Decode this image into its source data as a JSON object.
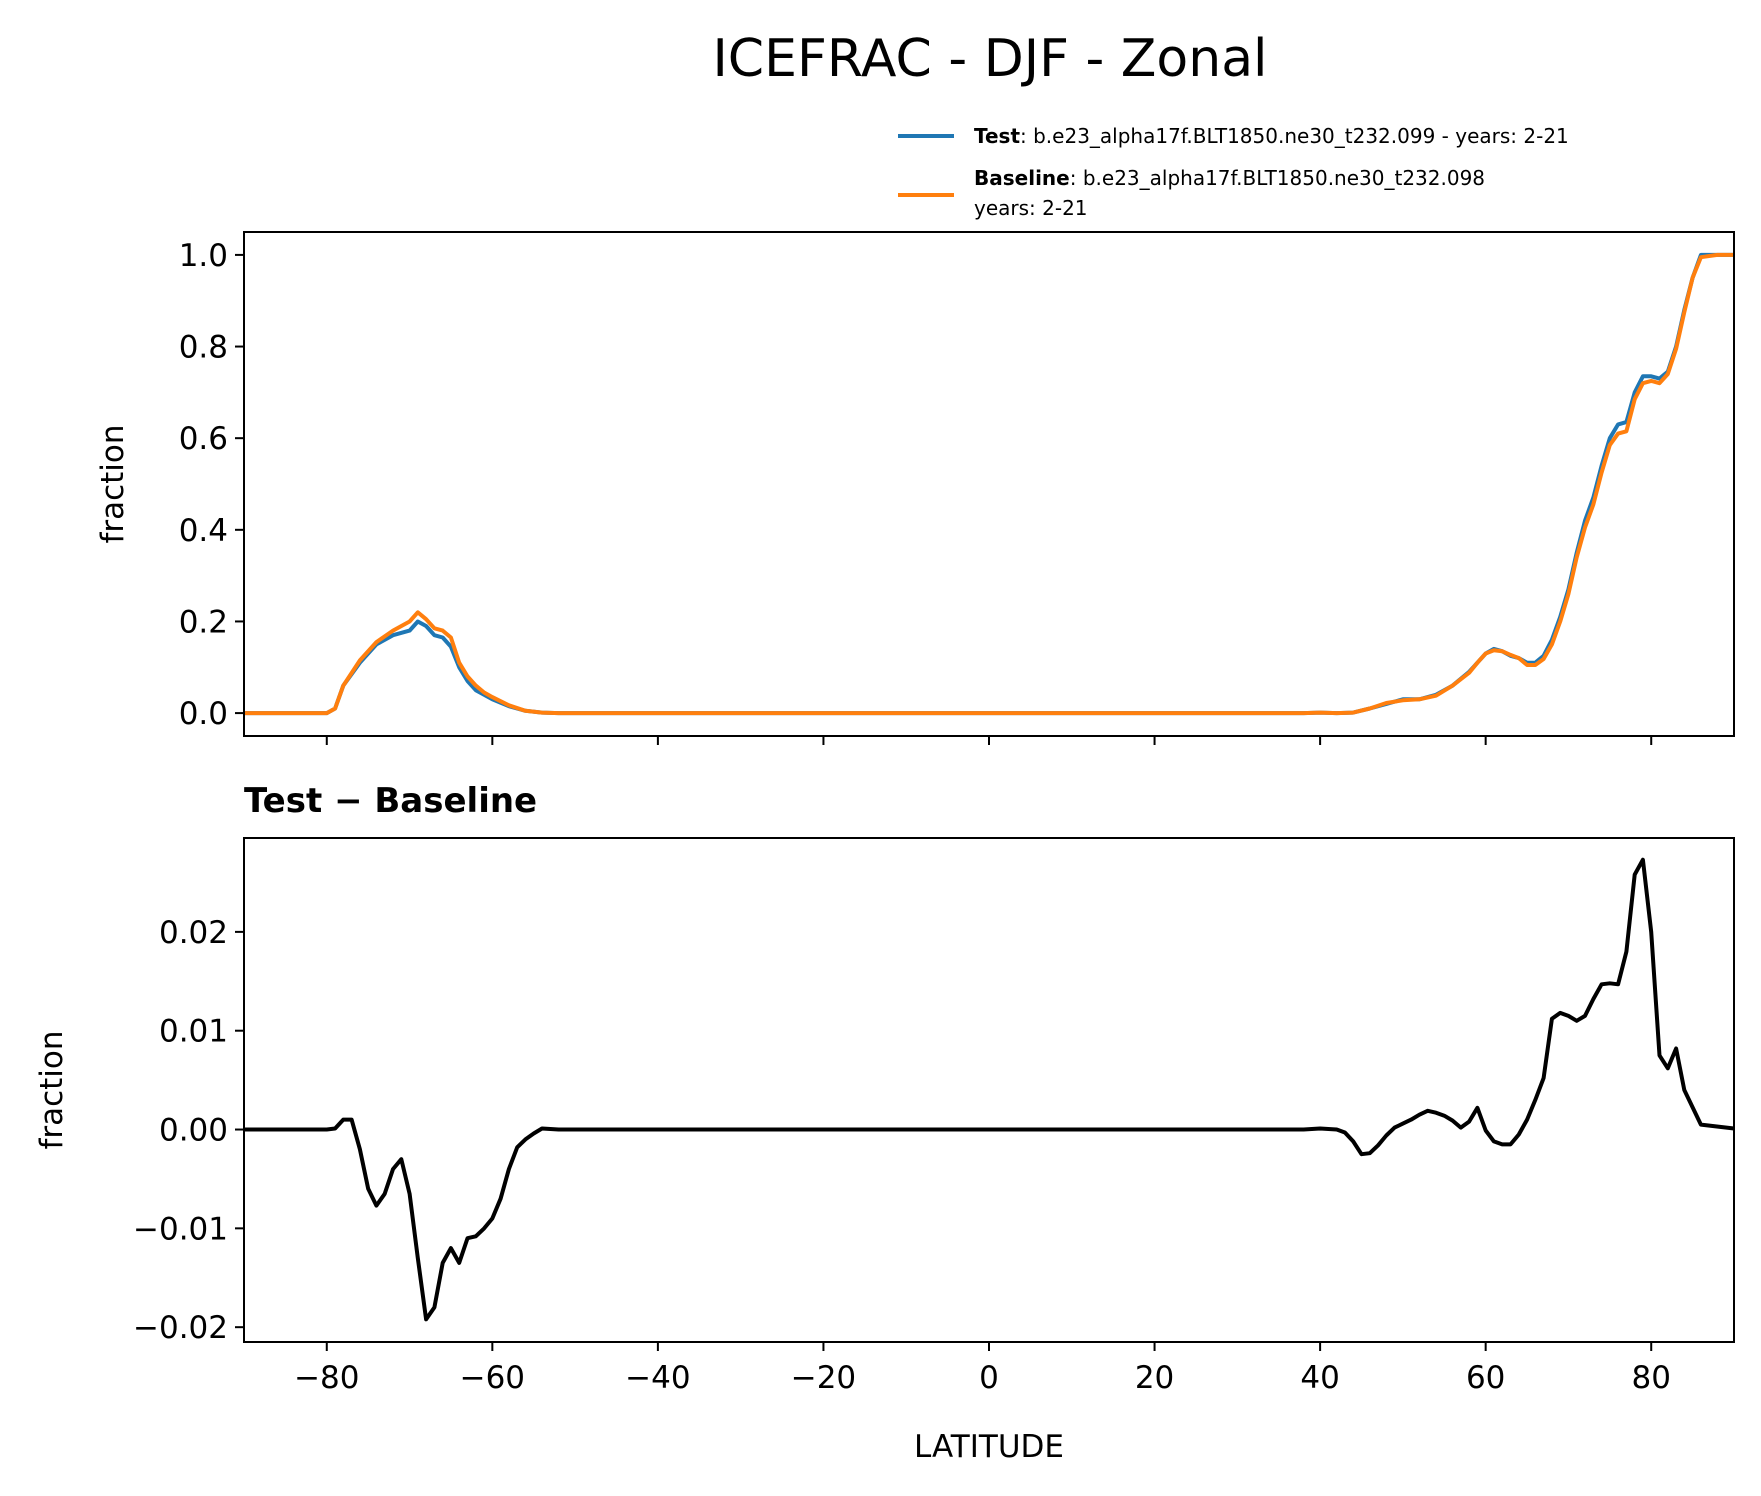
{
  "figure": {
    "title": "ICEFRAC - DJF - Zonal"
  },
  "legend": {
    "test": {
      "label": "Test",
      "text": ": b.e23_alpha17f.BLT1850.ne30_t232.099 - years: 2-21",
      "color": "#1f77b4"
    },
    "baseline": {
      "label": "Baseline",
      "text": ": b.e23_alpha17f.BLT1850.ne30_t232.098",
      "text2": "years: 2-21",
      "color": "#ff7f0e"
    }
  },
  "diff_title": "Test − Baseline",
  "xlabel": "LATITUDE",
  "chart_data": [
    {
      "type": "line",
      "ylabel": "fraction",
      "xlim": [
        -90,
        90
      ],
      "ylim": [
        -0.05,
        1.05
      ],
      "xticks": [
        -80,
        -60,
        -40,
        -20,
        0,
        20,
        40,
        60,
        80
      ],
      "yticks": [
        0.0,
        0.2,
        0.4,
        0.6,
        0.8,
        1.0
      ],
      "ytick_labels": [
        "0.0",
        "0.2",
        "0.4",
        "0.6",
        "0.8",
        "1.0"
      ],
      "series": [
        {
          "name": "Test",
          "color": "#1f77b4",
          "x": [
            -90,
            -80,
            -79,
            -78,
            -76,
            -74,
            -72,
            -70,
            -69,
            -68,
            -67,
            -66,
            -65,
            -64,
            -63,
            -62,
            -61,
            -60,
            -58,
            -56,
            -54,
            -52,
            -40,
            -20,
            0,
            20,
            38,
            40,
            42,
            44,
            46,
            48,
            50,
            52,
            54,
            56,
            58,
            59,
            60,
            61,
            62,
            63,
            64,
            65,
            66,
            67,
            68,
            69,
            70,
            71,
            72,
            73,
            74,
            75,
            76,
            77,
            78,
            79,
            80,
            81,
            82,
            83,
            84,
            85,
            86,
            88,
            90
          ],
          "y": [
            0,
            0,
            0.01,
            0.06,
            0.11,
            0.15,
            0.17,
            0.18,
            0.2,
            0.19,
            0.17,
            0.165,
            0.145,
            0.1,
            0.07,
            0.05,
            0.04,
            0.03,
            0.015,
            0.005,
            0.001,
            0,
            0,
            0,
            0,
            0,
            0,
            0.001,
            0,
            0.001,
            0.01,
            0.02,
            0.03,
            0.03,
            0.04,
            0.06,
            0.09,
            0.11,
            0.13,
            0.14,
            0.135,
            0.125,
            0.12,
            0.11,
            0.11,
            0.125,
            0.16,
            0.21,
            0.27,
            0.35,
            0.42,
            0.47,
            0.54,
            0.6,
            0.63,
            0.635,
            0.7,
            0.735,
            0.735,
            0.73,
            0.745,
            0.8,
            0.88,
            0.95,
            1.0,
            1.0,
            1.0
          ]
        },
        {
          "name": "Baseline",
          "color": "#ff7f0e",
          "x": [
            -90,
            -80,
            -79,
            -78,
            -76,
            -74,
            -72,
            -70,
            -69,
            -68,
            -67,
            -66,
            -65,
            -64,
            -63,
            -62,
            -61,
            -60,
            -58,
            -56,
            -54,
            -52,
            -40,
            -20,
            0,
            20,
            38,
            40,
            42,
            44,
            46,
            48,
            50,
            52,
            54,
            56,
            58,
            59,
            60,
            61,
            62,
            63,
            64,
            65,
            66,
            67,
            68,
            69,
            70,
            71,
            72,
            73,
            74,
            75,
            76,
            77,
            78,
            79,
            80,
            81,
            82,
            83,
            84,
            85,
            86,
            88,
            90
          ],
          "y": [
            0,
            0,
            0.01,
            0.06,
            0.115,
            0.155,
            0.18,
            0.2,
            0.22,
            0.205,
            0.185,
            0.18,
            0.165,
            0.11,
            0.08,
            0.06,
            0.045,
            0.035,
            0.017,
            0.005,
            0.001,
            0,
            0,
            0,
            0,
            0,
            0,
            0.001,
            0,
            0.001,
            0.01,
            0.022,
            0.028,
            0.03,
            0.038,
            0.06,
            0.088,
            0.11,
            0.13,
            0.137,
            0.135,
            0.127,
            0.12,
            0.105,
            0.105,
            0.118,
            0.15,
            0.2,
            0.26,
            0.34,
            0.405,
            0.455,
            0.525,
            0.585,
            0.61,
            0.615,
            0.685,
            0.72,
            0.725,
            0.72,
            0.74,
            0.795,
            0.875,
            0.95,
            0.995,
            1.0,
            1.0
          ]
        }
      ]
    },
    {
      "type": "line",
      "title": "Test − Baseline",
      "xlabel": "LATITUDE",
      "ylabel": "fraction",
      "xlim": [
        -90,
        90
      ],
      "ylim": [
        -0.0215,
        0.0295
      ],
      "xticks": [
        -80,
        -60,
        -40,
        -20,
        0,
        20,
        40,
        60,
        80
      ],
      "xtick_labels": [
        "−80",
        "−60",
        "−40",
        "−20",
        "0",
        "20",
        "40",
        "60",
        "80"
      ],
      "yticks": [
        -0.02,
        -0.01,
        0.0,
        0.01,
        0.02
      ],
      "ytick_labels": [
        "−0.02",
        "−0.01",
        "0.00",
        "0.01",
        "0.02"
      ],
      "series": [
        {
          "name": "Test − Baseline",
          "color": "#000000",
          "x": [
            -90,
            -80,
            -79,
            -78,
            -77,
            -76,
            -75,
            -74,
            -73,
            -72,
            -71,
            -70,
            -69,
            -68,
            -67,
            -66,
            -65,
            -64,
            -63,
            -62,
            -61,
            -60,
            -59,
            -58,
            -57,
            -56,
            -55,
            -54,
            -52,
            -40,
            -20,
            0,
            20,
            38,
            40,
            42,
            43,
            44,
            45,
            46,
            47,
            48,
            49,
            50,
            51,
            52,
            53,
            54,
            55,
            56,
            57,
            58,
            59,
            60,
            61,
            62,
            63,
            64,
            65,
            66,
            67,
            68,
            69,
            70,
            71,
            72,
            73,
            74,
            75,
            76,
            77,
            78,
            79,
            80,
            81,
            82,
            83,
            84,
            86,
            90
          ],
          "y": [
            0,
            0,
            0.0001,
            0.001,
            0.001,
            -0.002,
            -0.006,
            -0.0077,
            -0.0065,
            -0.004,
            -0.003,
            -0.0065,
            -0.013,
            -0.0192,
            -0.018,
            -0.0135,
            -0.012,
            -0.0135,
            -0.011,
            -0.0108,
            -0.01,
            -0.009,
            -0.007,
            -0.004,
            -0.0018,
            -0.001,
            -0.0004,
            0.0001,
            0,
            0,
            0,
            0,
            0,
            0,
            0.0001,
            0,
            -0.0003,
            -0.0012,
            -0.0025,
            -0.0024,
            -0.0016,
            -0.0006,
            0.0002,
            0.0006,
            0.001,
            0.0015,
            0.0019,
            0.0017,
            0.0014,
            0.0009,
            0.0002,
            0.0008,
            0.0022,
            -0.0001,
            -0.0012,
            -0.0015,
            -0.0015,
            -0.0005,
            0.001,
            0.003,
            0.0052,
            0.0112,
            0.0118,
            0.0115,
            0.011,
            0.0115,
            0.0132,
            0.0147,
            0.0148,
            0.0147,
            0.018,
            0.0258,
            0.0273,
            0.02,
            0.0075,
            0.0062,
            0.0082,
            0.004,
            0.0005,
            0.0001
          ]
        }
      ]
    }
  ]
}
